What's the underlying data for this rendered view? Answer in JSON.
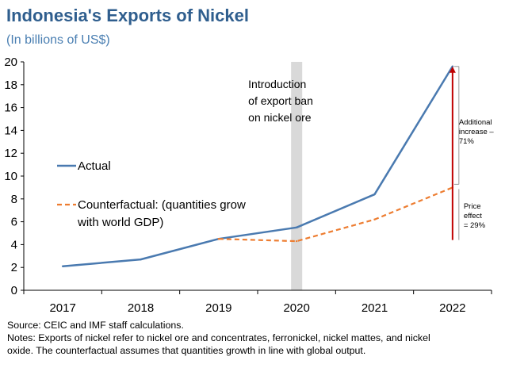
{
  "header": {
    "title": "Indonesia's Exports of Nickel",
    "subtitle": "(In billions of US$)"
  },
  "chart_data": {
    "type": "line",
    "categories": [
      "2017",
      "2018",
      "2019",
      "2020",
      "2021",
      "2022"
    ],
    "series": [
      {
        "name": "Actual",
        "values": [
          2.1,
          2.7,
          4.5,
          5.5,
          8.4,
          19.6
        ],
        "color": "#4a7ab0",
        "style": "solid"
      },
      {
        "name": "Counterfactual: (quantities grow with world GDP)",
        "values": [
          null,
          null,
          4.5,
          4.3,
          6.2,
          9.0
        ],
        "color": "#ed7d31",
        "style": "dashed"
      }
    ],
    "legend_lines": {
      "actual": [
        "Actual"
      ],
      "counterfactual": [
        "Counterfactual: (quantities grow",
        "with world GDP)"
      ]
    },
    "yticks": [
      "0",
      "2",
      "4",
      "6",
      "8",
      "10",
      "12",
      "14",
      "16",
      "18",
      "20"
    ],
    "ylim": [
      0,
      20
    ],
    "xlabel": "",
    "ylabel": "",
    "ban_year": "2020",
    "ban_annotation": [
      "Introduction",
      "of export ban",
      "on nickel ore"
    ],
    "additional_increase": {
      "label": [
        "Additional",
        "increase –",
        "71%"
      ],
      "from": 9.0,
      "to": 19.6
    },
    "price_effect": {
      "label": [
        "Price",
        "effect",
        "= 29%"
      ],
      "from": 4.4,
      "to": 9.0
    },
    "arrow_color": "#c00000",
    "ban_band_color": "#d9d9d9"
  },
  "footer": {
    "source": "Source: CEIC and IMF staff calculations.",
    "notes": [
      "Notes: Exports of nickel refer to nickel ore and concentrates, ferronickel, nickel mattes, and nickel",
      "oxide. The counterfactual assumes that quantities growth in line with global output."
    ]
  }
}
